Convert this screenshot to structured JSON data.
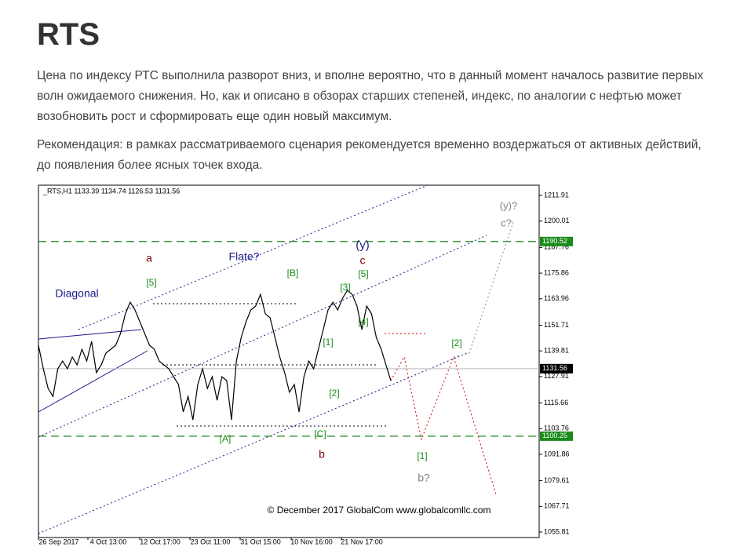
{
  "header": {
    "title": "RTS"
  },
  "paragraphs": [
    "Цена по индексу РТС выполнила разворот вниз, и вполне вероятно, что в данный момент началось развитие первых волн ожидаемого снижения. Но, как и описано в обзорах старших степеней, индекс, по аналогии с нефтью может возобновить рост и сформировать еще один новый максимум.",
    "Рекомендация:  в рамках рассматриваемого сценария рекомендуется временно воздержаться от активных действий, до появления более ясных точек входа."
  ],
  "chart": {
    "type": "line",
    "symbol_info": "_RTS,H1  1133.39 1134.74 1126.53 1131.56",
    "ylim": [
      1053.26,
      1216.64
    ],
    "yticks": [
      1211.91,
      1200.01,
      1187.76,
      1175.86,
      1163.96,
      1151.71,
      1139.81,
      1127.91,
      1115.66,
      1103.76,
      1091.86,
      1079.61,
      1067.71,
      1055.81
    ],
    "xticks": [
      "26 Sep 2017",
      "4 Oct 13:00",
      "12 Oct 17:00",
      "23 Oct 11:00",
      "31 Oct 15:00",
      "10 Nov 16:00",
      "21 Nov 17:00"
    ],
    "levels": [
      {
        "value": 1190.52,
        "color": "#1a8a1a",
        "dashed": true
      },
      {
        "value": 1131.56,
        "color": "#000000",
        "dashed": false
      },
      {
        "value": 1100.25,
        "color": "#1a8a1a",
        "dashed": true
      }
    ],
    "color": "#000000",
    "price": [
      1142.4,
      1131.5,
      1122.4,
      1118.7,
      1131.5,
      1135.1,
      1131.5,
      1136.9,
      1133.3,
      1140.6,
      1135.1,
      1144.2,
      1129.7,
      1133.3,
      1138.8,
      1140.6,
      1142.4,
      1147.9,
      1157.0,
      1162.4,
      1158.8,
      1153.3,
      1147.9,
      1142.4,
      1140.6,
      1135.1,
      1133.3,
      1131.5,
      1127.8,
      1124.2,
      1111.5,
      1118.7,
      1107.8,
      1124.2,
      1131.5,
      1122.4,
      1127.8,
      1116.9,
      1127.8,
      1126.0,
      1107.8,
      1135.1,
      1146.0,
      1153.3,
      1158.8,
      1160.6,
      1166.0,
      1157.0,
      1155.1,
      1146.0,
      1136.9,
      1129.7,
      1120.6,
      1124.2,
      1111.5,
      1127.8,
      1135.1,
      1131.5,
      1140.6,
      1149.7,
      1158.8,
      1162.4,
      1158.8,
      1164.2,
      1167.9,
      1166.0,
      1160.6,
      1149.7,
      1160.6,
      1157.0,
      1146.0,
      1140.6,
      1133.3,
      1126.0
    ],
    "annotations": [
      {
        "text": "Diagonal",
        "color": "#1a1a8c"
      },
      {
        "text": "a",
        "color": "#8b0000"
      },
      {
        "text": "[5]",
        "color": "#1a8a1a"
      },
      {
        "text": "Flate?",
        "color": "#1a1a8c"
      },
      {
        "text": "[B]",
        "color": "#1a8a1a"
      },
      {
        "text": "(y)",
        "color": "#1a1a8c"
      },
      {
        "text": "c",
        "color": "#8b0000"
      },
      {
        "text": "[5]",
        "color": "#1a8a1a"
      },
      {
        "text": "[3]",
        "color": "#1a8a1a"
      },
      {
        "text": "[4]",
        "color": "#1a8a1a"
      },
      {
        "text": "[1]",
        "color": "#1a8a1a"
      },
      {
        "text": "[2]",
        "color": "#1a8a1a"
      },
      {
        "text": "[A]",
        "color": "#1a8a1a"
      },
      {
        "text": "[C]",
        "color": "#1a8a1a"
      },
      {
        "text": "b",
        "color": "#8b0000"
      },
      {
        "text": "[1]",
        "color": "#1a8a1a"
      },
      {
        "text": "b?",
        "color": "#808080"
      },
      {
        "text": "[2]",
        "color": "#1a8a1a"
      },
      {
        "text": "(y)?",
        "color": "#808080"
      },
      {
        "text": "c?",
        "color": "#808080"
      },
      {
        "text": "© December 2017 GlobalCom www.globalcomllc.com",
        "color": "#000000"
      }
    ]
  }
}
